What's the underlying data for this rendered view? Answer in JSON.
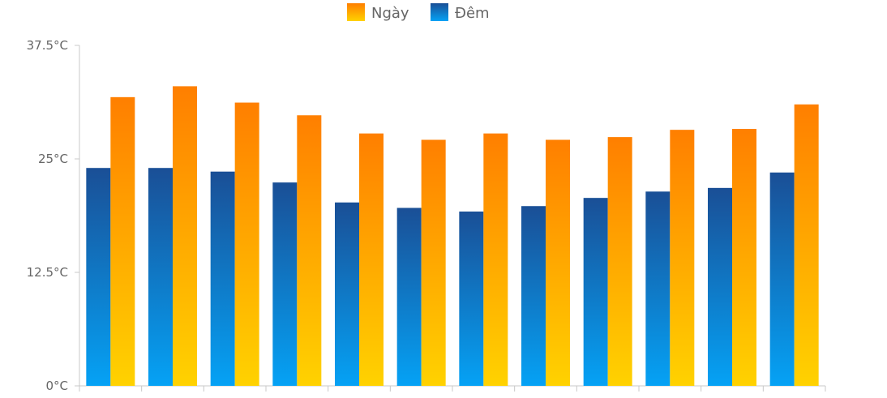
{
  "chart_data": {
    "type": "bar",
    "categories": [
      "",
      "",
      "",
      "",
      "",
      "",
      "",
      "",
      "",
      "",
      "",
      ""
    ],
    "series": [
      {
        "name": "Đêm",
        "values": [
          24.0,
          24.0,
          23.6,
          22.4,
          20.2,
          19.6,
          19.2,
          19.8,
          20.7,
          21.4,
          21.8,
          23.5
        ]
      },
      {
        "name": "Ngày",
        "values": [
          31.8,
          33.0,
          31.2,
          29.8,
          27.8,
          27.1,
          27.8,
          27.1,
          27.4,
          28.2,
          28.3,
          31.0
        ]
      }
    ],
    "ylim": [
      0,
      37.5
    ],
    "yticks": [
      "0°C",
      "12.5°C",
      "25°C",
      "37.5°C"
    ],
    "grid": false,
    "legend_position": "top-center",
    "colors": {
      "day_top": "#ff7f00",
      "day_bottom": "#ffd200",
      "night_top": "#1a4f96",
      "night_bottom": "#05a2f5",
      "axis": "#c8c8c8",
      "text": "#666666"
    }
  },
  "legend": {
    "day_label": "Ngày",
    "night_label": "Đêm"
  }
}
